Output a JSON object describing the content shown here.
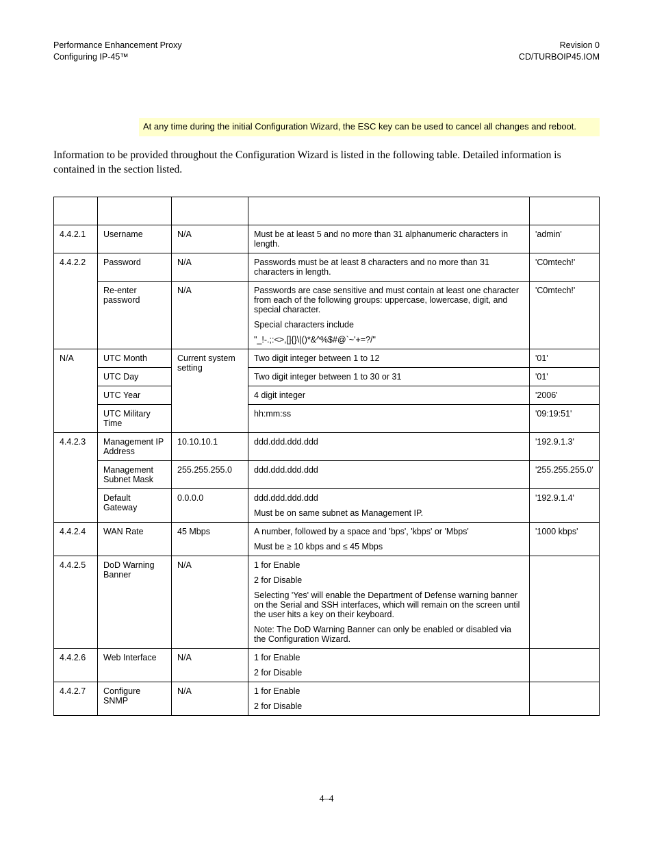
{
  "header": {
    "left_line1": "Performance Enhancement Proxy",
    "left_line2": "Configuring       IP-45™",
    "right_line1": "Revision 0",
    "right_line2": "CD/TURBOIP45.IOM"
  },
  "note": "At any time during the initial Configuration Wizard, the ESC key can be used to cancel all changes and reboot.",
  "intro": "Information to be provided throughout the Configuration Wizard is listed in the following table. Detailed information is contained in the section listed.",
  "rows": {
    "r1": {
      "sec": "4.4.2.1",
      "field": "Username",
      "def": "N/A",
      "desc": [
        "Must be at least 5 and no more than 31 alphanumeric characters in length."
      ],
      "ex": "'admin'"
    },
    "r2a": {
      "sec": "4.4.2.2",
      "field": "Password",
      "def": "N/A",
      "desc": [
        "Passwords must be at least 8 characters and no more than 31 characters in length."
      ],
      "ex": "'C0mtech!'"
    },
    "r2b": {
      "field": "Re-enter password",
      "def": "N/A",
      "desc": [
        "Passwords are case sensitive and must contain at least one character from each of the following groups: uppercase, lowercase, digit, and special character.",
        "Special characters include",
        "\"_!-.;:<>,[]{}\\|()*&^%$#@`~'+=?/\""
      ],
      "ex": "'C0mtech!'"
    },
    "r3a": {
      "sec": "N/A",
      "field": "UTC Month",
      "def": "Current system setting",
      "desc": [
        "Two digit integer between 1 to 12"
      ],
      "ex": "'01'"
    },
    "r3b": {
      "field": "UTC Day",
      "desc": [
        "Two digit integer between 1 to 30 or 31"
      ],
      "ex": "'01'"
    },
    "r3c": {
      "field": "UTC Year",
      "desc": [
        "4 digit integer"
      ],
      "ex": "'2006'"
    },
    "r3d": {
      "field": "UTC Military Time",
      "desc": [
        "hh:mm:ss"
      ],
      "ex": "'09:19:51'"
    },
    "r4a": {
      "sec": "4.4.2.3",
      "field": "Management IP Address",
      "def": "10.10.10.1",
      "desc": [
        "ddd.ddd.ddd.ddd"
      ],
      "ex": "'192.9.1.3'"
    },
    "r4b": {
      "field": "Management Subnet Mask",
      "def": "255.255.255.0",
      "desc": [
        "ddd.ddd.ddd.ddd"
      ],
      "ex": "'255.255.255.0'"
    },
    "r4c": {
      "field": "Default Gateway",
      "def": "0.0.0.0",
      "desc": [
        "ddd.ddd.ddd.ddd",
        "Must be on same subnet as Management IP."
      ],
      "ex": "'192.9.1.4'"
    },
    "r5": {
      "sec": "4.4.2.4",
      "field": "WAN Rate",
      "def": "45 Mbps",
      "desc": [
        "A number, followed by a space and 'bps', 'kbps' or 'Mbps'",
        "Must be ≥ 10 kbps and ≤ 45 Mbps"
      ],
      "ex": "'1000 kbps'"
    },
    "r6": {
      "sec": "4.4.2.5",
      "field": "DoD Warning Banner",
      "def": "N/A",
      "desc": [
        "1 for Enable",
        "2 for Disable",
        "Selecting 'Yes' will enable the Department of Defense warning banner on the Serial and SSH interfaces, which will remain on the screen until the user hits a key on their keyboard.",
        "Note: The DoD Warning Banner can only be enabled or disabled via the Configuration Wizard."
      ],
      "ex": ""
    },
    "r7": {
      "sec": "4.4.2.6",
      "field": "Web Interface",
      "def": "N/A",
      "desc": [
        "1 for Enable",
        "2 for Disable"
      ],
      "ex": ""
    },
    "r8": {
      "sec": "4.4.2.7",
      "field": "Configure SNMP",
      "def": "N/A",
      "desc": [
        "1 for Enable",
        "2 for Disable"
      ],
      "ex": ""
    }
  },
  "footer": "4–4"
}
